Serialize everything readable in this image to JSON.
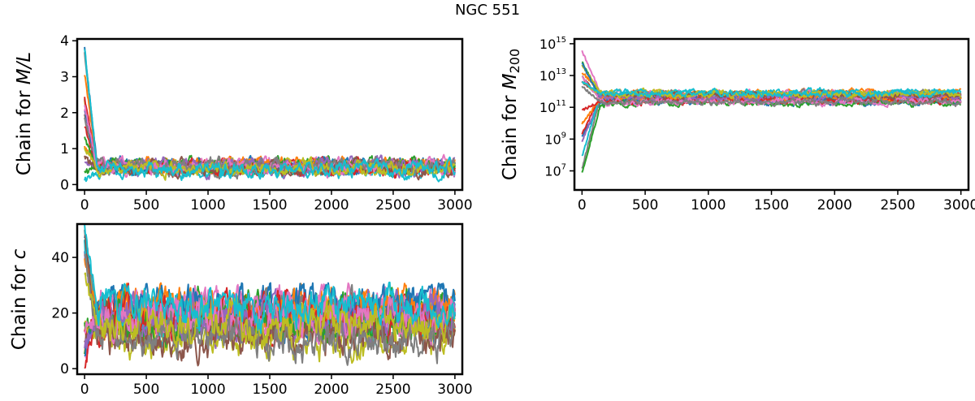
{
  "figure_title": "NGC   551",
  "palette": [
    "#1f77b4",
    "#ff7f0e",
    "#2ca02c",
    "#d62728",
    "#9467bd",
    "#8c564b",
    "#e377c2",
    "#7f7f7f",
    "#bcbd22",
    "#17becf"
  ],
  "chart_data": [
    {
      "type": "line",
      "name": "chain-ml",
      "ylabel_prefix": "Chain for ",
      "ylabel_symbol": "M/L",
      "ylabel_sub": "",
      "xlim": [
        -60,
        3060
      ],
      "ylim": [
        -0.15,
        4.05
      ],
      "yscale": "linear",
      "xticks": [
        0,
        500,
        1000,
        1500,
        2000,
        2500,
        3000
      ],
      "xtick_labels": [
        "0",
        "500",
        "1000",
        "1500",
        "2000",
        "2500",
        "3000"
      ],
      "yticks": [
        0,
        1,
        2,
        3,
        4
      ],
      "ytick_labels": [
        "0",
        "1",
        "2",
        "3",
        "4"
      ],
      "n_walkers": 20,
      "n_steps": 3000,
      "initial_peak": 3.8,
      "burn_in_steps": 100,
      "stationary_band": [
        0.05,
        0.9
      ]
    },
    {
      "type": "line",
      "name": "chain-m200",
      "ylabel_prefix": "Chain for ",
      "ylabel_symbol": "M",
      "ylabel_sub": "200",
      "xlim": [
        -60,
        3060
      ],
      "ylim": [
        5.8,
        15.3
      ],
      "yscale": "log10",
      "xticks": [
        0,
        500,
        1000,
        1500,
        2000,
        2500,
        3000
      ],
      "xtick_labels": [
        "0",
        "500",
        "1000",
        "1500",
        "2000",
        "2500",
        "3000"
      ],
      "yticks": [
        7,
        9,
        11,
        13,
        15
      ],
      "ytick_base": "10",
      "ytick_exponents": [
        "7",
        "9",
        "11",
        "13",
        "15"
      ],
      "n_walkers": 20,
      "n_steps": 3000,
      "initial_range_log10": [
        6.3,
        14.8
      ],
      "burn_in_steps": 150,
      "stationary_band_log10": [
        10.9,
        12.3
      ]
    },
    {
      "type": "line",
      "name": "chain-c",
      "ylabel_prefix": "Chain for ",
      "ylabel_symbol": "c",
      "ylabel_sub": "",
      "xlim": [
        -60,
        3060
      ],
      "ylim": [
        -2,
        52
      ],
      "yscale": "linear",
      "xticks": [
        0,
        500,
        1000,
        1500,
        2000,
        2500,
        3000
      ],
      "xtick_labels": [
        "0",
        "500",
        "1000",
        "1500",
        "2000",
        "2500",
        "3000"
      ],
      "yticks": [
        0,
        20,
        40
      ],
      "ytick_labels": [
        "0",
        "20",
        "40"
      ],
      "n_walkers": 20,
      "n_steps": 3000,
      "initial_peak": 50,
      "burn_in_steps": 100,
      "stationary_band": [
        1,
        31
      ]
    }
  ]
}
